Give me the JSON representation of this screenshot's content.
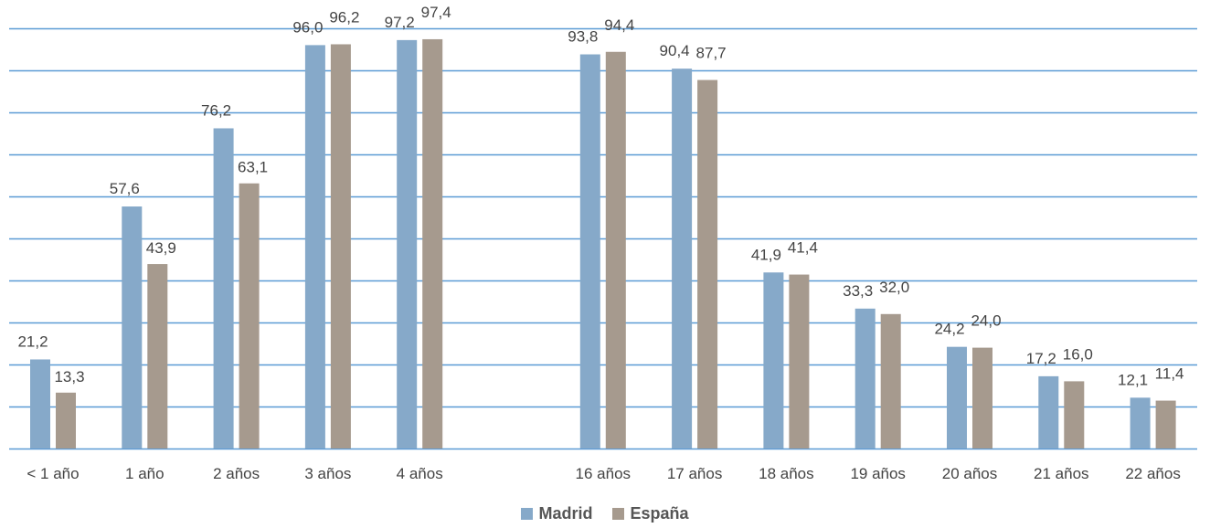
{
  "chart_data": {
    "type": "bar",
    "categories": [
      "< 1 año",
      "1 año",
      "2 años",
      "3 años",
      "4 años",
      "16 años",
      "17 años",
      "18 años",
      "19 años",
      "20 años",
      "21 años",
      "22 años"
    ],
    "category_slots": [
      0,
      1,
      2,
      3,
      4,
      6,
      7,
      8,
      9,
      10,
      11,
      12
    ],
    "series": [
      {
        "name": "Madrid",
        "color": "#86A9C9",
        "values": [
          21.2,
          57.6,
          76.2,
          96.0,
          97.2,
          93.8,
          90.4,
          41.9,
          33.3,
          24.2,
          17.2,
          12.1
        ],
        "labels": [
          "21,2",
          "57,6",
          "76,2",
          "96,0",
          "97,2",
          "93,8",
          "90,4",
          "41,9",
          "33,3",
          "24,2",
          "17,2",
          "12,1"
        ]
      },
      {
        "name": "España",
        "color": "#A69A8E",
        "values": [
          13.3,
          43.9,
          63.1,
          96.2,
          97.4,
          94.4,
          87.7,
          41.4,
          32.0,
          24.0,
          16.0,
          11.4
        ],
        "labels": [
          "13,3",
          "43,9",
          "63,1",
          "96,2",
          "97,4",
          "94,4",
          "87,7",
          "41,4",
          "32,0",
          "24,0",
          "16,0",
          "11,4"
        ]
      }
    ],
    "ylim": [
      0,
      100
    ],
    "grid": true,
    "gridline_step": 10,
    "grid_color": "#5B9BD5",
    "legend_position": "bottom",
    "title": "",
    "xlabel": "",
    "ylabel": ""
  }
}
